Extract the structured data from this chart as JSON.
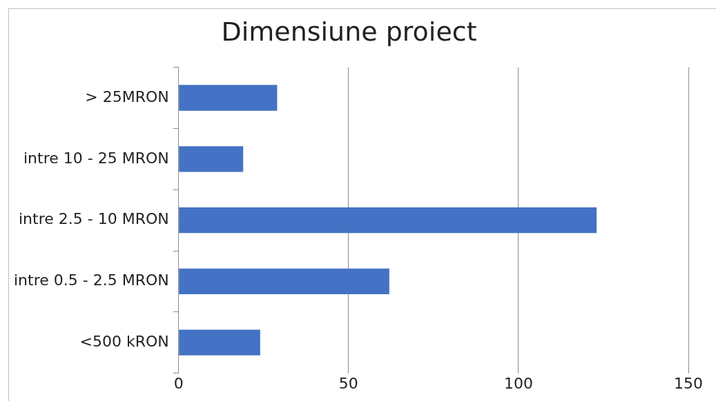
{
  "chart_data": {
    "type": "bar",
    "orientation": "horizontal",
    "title": "Dimensiune proiect",
    "categories": [
      "> 25MRON",
      "intre 10 - 25 MRON",
      "intre 2.5 - 10 MRON",
      "intre 0.5 - 2.5 MRON",
      "<500 kRON"
    ],
    "values": [
      29,
      19,
      123,
      62,
      24
    ],
    "color": "#4472c4",
    "xlim": [
      0,
      150
    ],
    "xticks": [
      0,
      50,
      100,
      150
    ],
    "grid": "x",
    "legend": false
  }
}
